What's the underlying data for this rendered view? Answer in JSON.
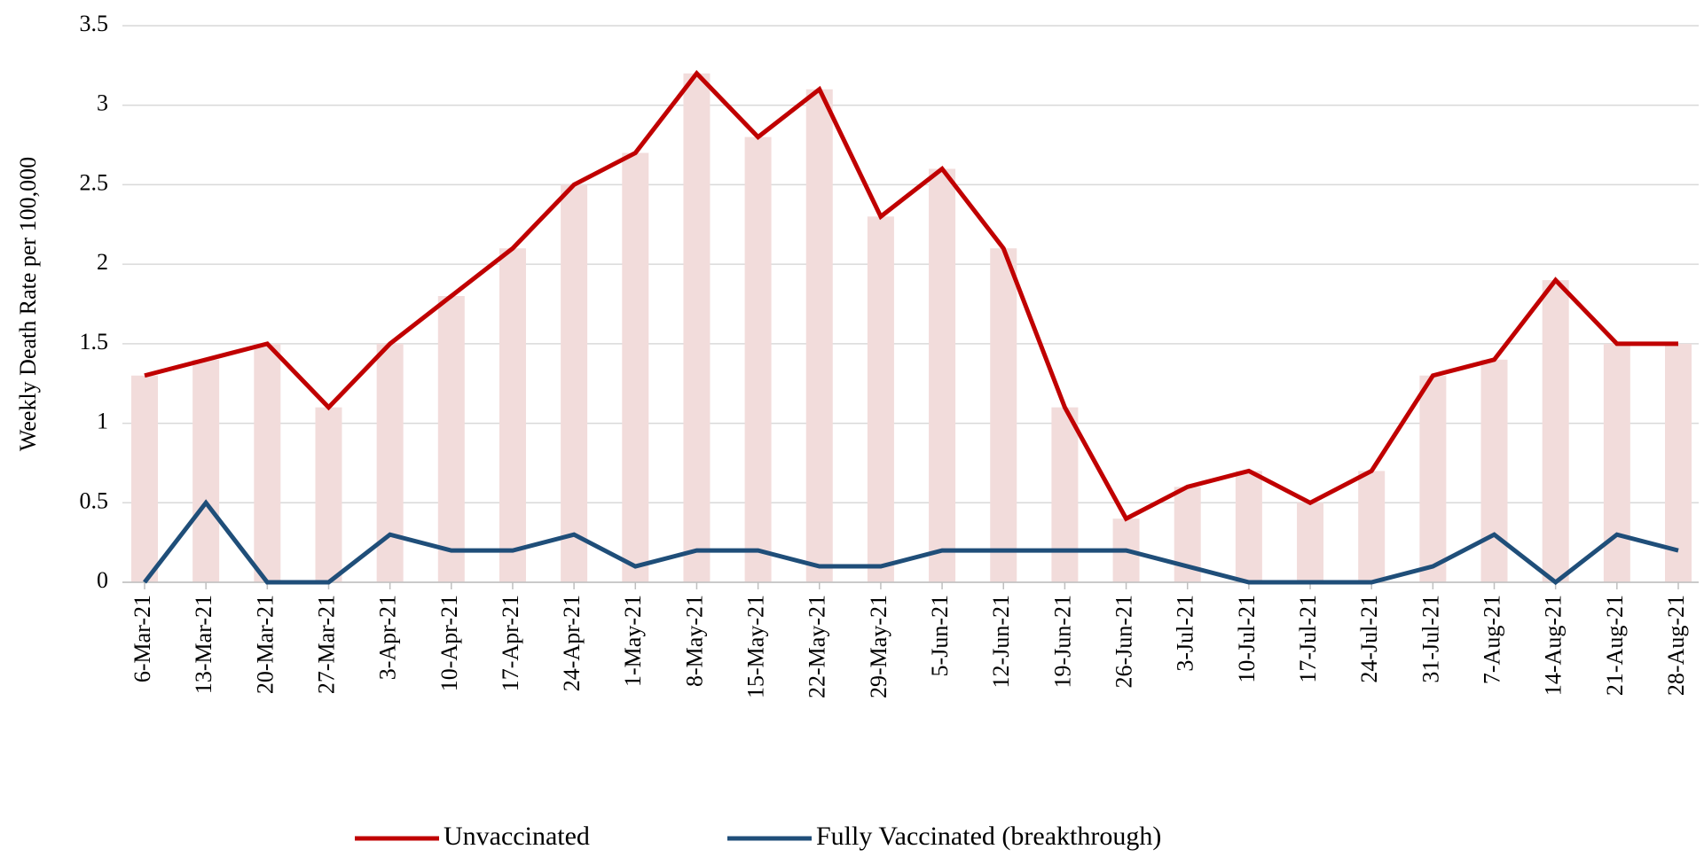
{
  "chart_data": {
    "type": "line",
    "y_label": "Weekly Death Rate per 100,000",
    "categories": [
      "6-Mar-21",
      "13-Mar-21",
      "20-Mar-21",
      "27-Mar-21",
      "3-Apr-21",
      "10-Apr-21",
      "17-Apr-21",
      "24-Apr-21",
      "1-May-21",
      "8-May-21",
      "15-May-21",
      "22-May-21",
      "29-May-21",
      "5-Jun-21",
      "12-Jun-21",
      "19-Jun-21",
      "26-Jun-21",
      "3-Jul-21",
      "10-Jul-21",
      "17-Jul-21",
      "24-Jul-21",
      "31-Jul-21",
      "7-Aug-21",
      "14-Aug-21",
      "21-Aug-21",
      "28-Aug-21"
    ],
    "series": [
      {
        "name": "Unvaccinated",
        "color": "#c00000",
        "bar_color": "#f2dcdb",
        "values": [
          1.3,
          1.4,
          1.5,
          1.1,
          1.5,
          1.8,
          2.1,
          2.5,
          2.7,
          3.2,
          2.8,
          3.1,
          2.3,
          2.6,
          2.1,
          1.1,
          0.4,
          0.6,
          0.7,
          0.5,
          0.7,
          1.3,
          1.4,
          1.9,
          1.5,
          1.5
        ]
      },
      {
        "name": "Fully Vaccinated (breakthrough)",
        "color": "#1f4e79",
        "values": [
          0,
          0.5,
          0,
          0,
          0.3,
          0.2,
          0.2,
          0.3,
          0.1,
          0.2,
          0.2,
          0.1,
          0.1,
          0.2,
          0.2,
          0.2,
          0.2,
          0.1,
          0,
          0,
          0,
          0.1,
          0.3,
          0,
          0.3,
          0.2
        ]
      }
    ],
    "ylim": [
      0,
      3.5
    ],
    "yticks": [
      0,
      0.5,
      1,
      1.5,
      2,
      2.5,
      3,
      3.5
    ],
    "grid": true,
    "legend": "bottom"
  }
}
